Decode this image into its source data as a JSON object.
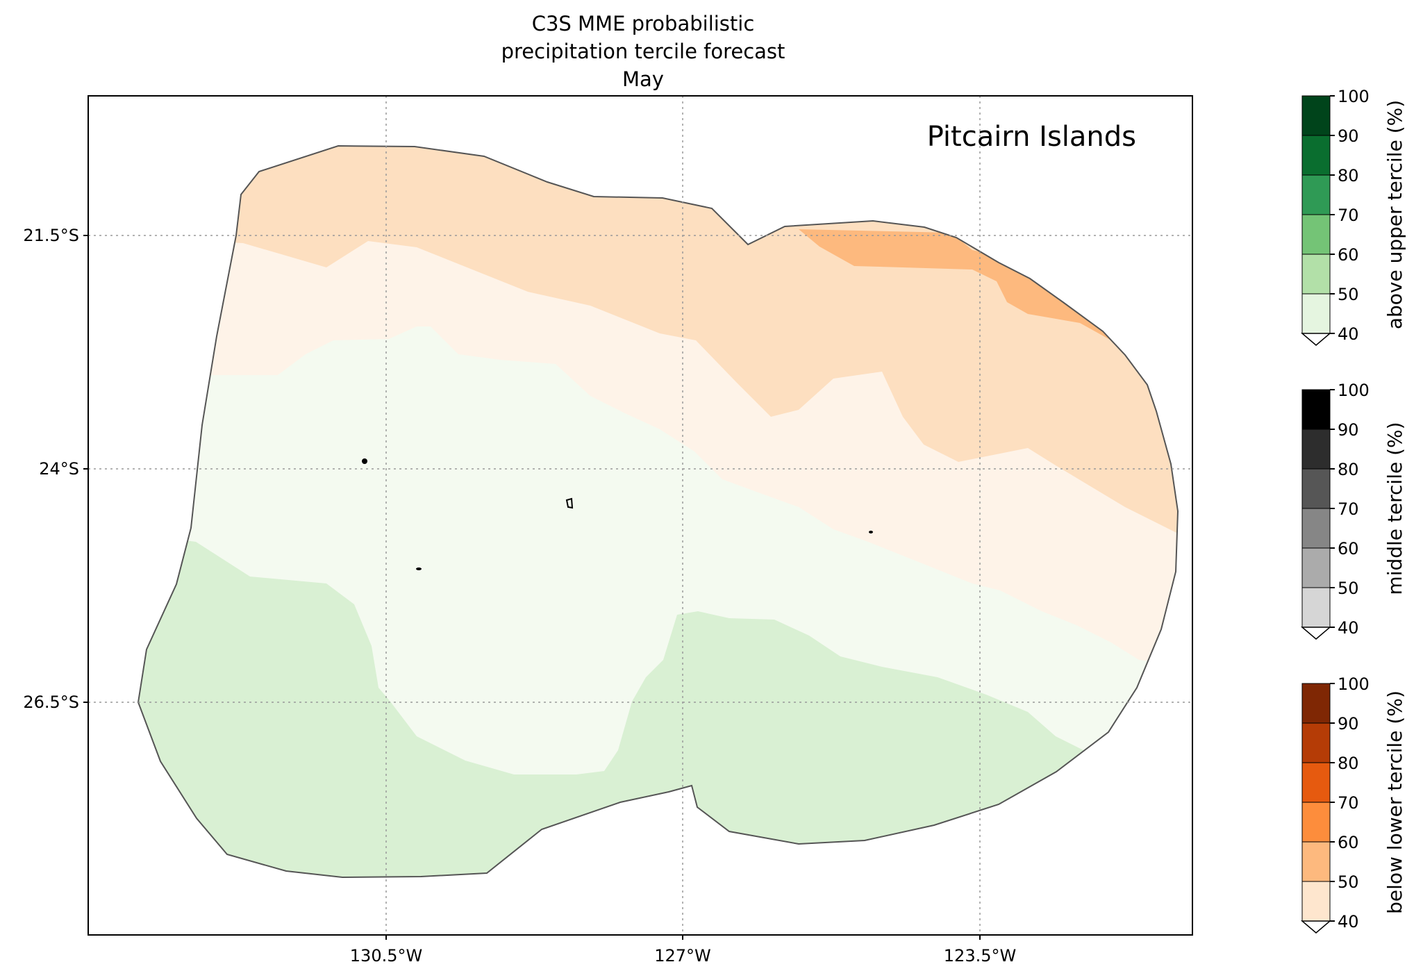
{
  "title": {
    "lines": [
      "C3S MME probabilistic",
      "precipitation tercile forecast",
      "May"
    ]
  },
  "map": {
    "region_label": "Pitcairn Islands",
    "lat_ticks": [
      "21.5°S",
      "24°S",
      "26.5°S"
    ],
    "lon_ticks": [
      "130.5°W",
      "127°W",
      "123.5°W"
    ],
    "gridlines": "dotted",
    "colors": {
      "outline": "#555555",
      "below_40_50": "#fddfc0",
      "below_50_60": "#fdb97e",
      "low_prob_below": "#fef3e8",
      "low_prob_above": "#f4faf0",
      "above_40_50": "#d9f0d3",
      "islands": "#000000"
    }
  },
  "colorbars": [
    {
      "label": "above upper tercile (%)",
      "ticks": [
        "100",
        "90",
        "80",
        "70",
        "60",
        "50",
        "40"
      ],
      "colors": [
        "#00441b",
        "#0a6e2f",
        "#2f9a55",
        "#74c476",
        "#b2e0a8",
        "#e5f5e0"
      ]
    },
    {
      "label": "middle tercile (%)",
      "ticks": [
        "100",
        "90",
        "80",
        "70",
        "60",
        "50",
        "40"
      ],
      "colors": [
        "#000000",
        "#2d2d2d",
        "#565656",
        "#868686",
        "#ababab",
        "#d6d6d6"
      ]
    },
    {
      "label": "below lower tercile (%)",
      "ticks": [
        "100",
        "90",
        "80",
        "70",
        "60",
        "50",
        "40"
      ],
      "colors": [
        "#7f2704",
        "#b53c06",
        "#e65a0f",
        "#fd8d3c",
        "#fdb97e",
        "#fee6ce"
      ]
    }
  ]
}
